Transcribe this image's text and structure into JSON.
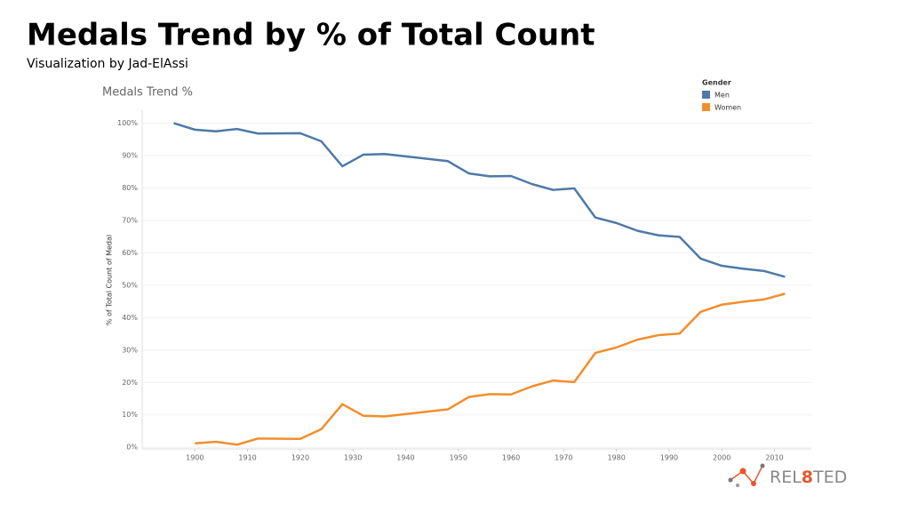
{
  "chart_data": {
    "type": "line",
    "title": "Medals Trend by % of Total Count",
    "subtitle": "Visualization by Jad-ElAssi",
    "chart_title": "Medals Trend %",
    "y_label": "% of Total Count of Medal",
    "legend_title": "Gender",
    "legend_position": "top-right",
    "grid": true,
    "logo_parts": [
      "REL",
      "8",
      "TED"
    ],
    "x": [
      1896,
      1900,
      1904,
      1908,
      1912,
      1920,
      1924,
      1928,
      1932,
      1936,
      1948,
      1952,
      1956,
      1960,
      1964,
      1968,
      1972,
      1976,
      1980,
      1984,
      1988,
      1992,
      1996,
      2000,
      2004,
      2008,
      2012
    ],
    "series": [
      {
        "name": "Men",
        "color": "#4e79a7",
        "values": [
          100,
          98,
          97.5,
          98.2,
          96.8,
          96.9,
          94.4,
          86.7,
          90.3,
          90.5,
          88.3,
          84.5,
          83.6,
          83.7,
          81.2,
          79.4,
          79.9,
          70.9,
          69.2,
          66.8,
          65.4,
          64.9,
          58.2,
          56,
          55.1,
          54.4,
          52.6
        ]
      },
      {
        "name": "Women",
        "color": "#f28e2b",
        "values": [
          null,
          1.2,
          1.7,
          0.8,
          2.7,
          2.6,
          5.6,
          13.3,
          9.7,
          9.5,
          11.7,
          15.5,
          16.4,
          16.3,
          18.8,
          20.6,
          20.1,
          29.1,
          30.8,
          33.2,
          34.6,
          35.1,
          41.8,
          44,
          44.9,
          45.6,
          47.4
        ]
      }
    ],
    "xlim": [
      1890,
      2017
    ],
    "xticks": [
      1900,
      1910,
      1920,
      1930,
      1940,
      1950,
      1960,
      1970,
      1980,
      1990,
      2000,
      2010
    ],
    "ylim": [
      -0.5,
      104
    ],
    "yticks": [
      {
        "value": 0,
        "label": "0%"
      },
      {
        "value": 10,
        "label": "10%"
      },
      {
        "value": 20,
        "label": "20%"
      },
      {
        "value": 30,
        "label": "30%"
      },
      {
        "value": 40,
        "label": "40%"
      },
      {
        "value": 50,
        "label": "50%"
      },
      {
        "value": 60,
        "label": "60%"
      },
      {
        "value": 70,
        "label": "70%"
      },
      {
        "value": 80,
        "label": "80%"
      },
      {
        "value": 90,
        "label": "90%"
      },
      {
        "value": 100,
        "label": "100%"
      }
    ]
  }
}
